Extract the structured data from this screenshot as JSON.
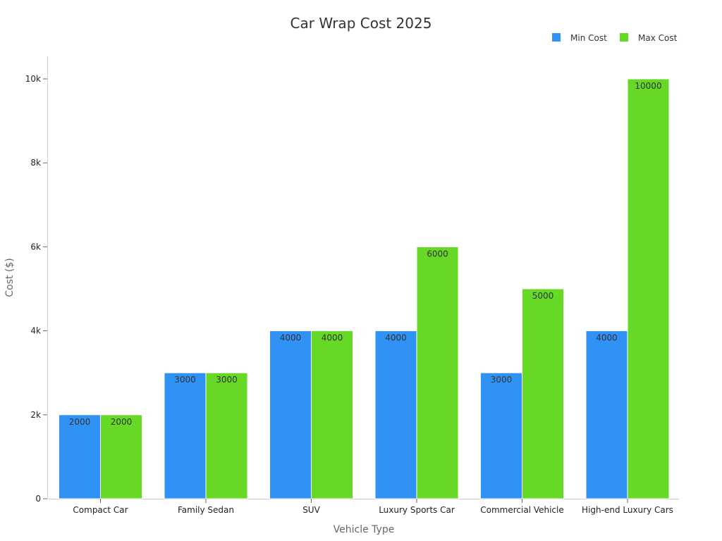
{
  "chart_data": {
    "type": "bar",
    "title": "Car Wrap Cost 2025",
    "xlabel": "Vehicle Type",
    "ylabel": "Cost ($)",
    "categories": [
      "Compact Car",
      "Family Sedan",
      "SUV",
      "Luxury Sports Car",
      "Commercial Vehicle",
      "High-end Luxury Cars"
    ],
    "series": [
      {
        "name": "Min Cost",
        "color": "#3092F5",
        "values": [
          2000,
          3000,
          4000,
          4000,
          3000,
          4000
        ]
      },
      {
        "name": "Max Cost",
        "color": "#66D926",
        "values": [
          2000,
          3000,
          4000,
          6000,
          5000,
          10000
        ]
      }
    ],
    "ylim": [
      0,
      10500
    ],
    "yticks": [
      0,
      2000,
      4000,
      6000,
      8000,
      10000
    ],
    "ytick_labels": [
      "0",
      "2k",
      "4k",
      "6k",
      "8k",
      "10k"
    ],
    "legend_position": "top-right",
    "grid": false,
    "data_labels": true
  }
}
